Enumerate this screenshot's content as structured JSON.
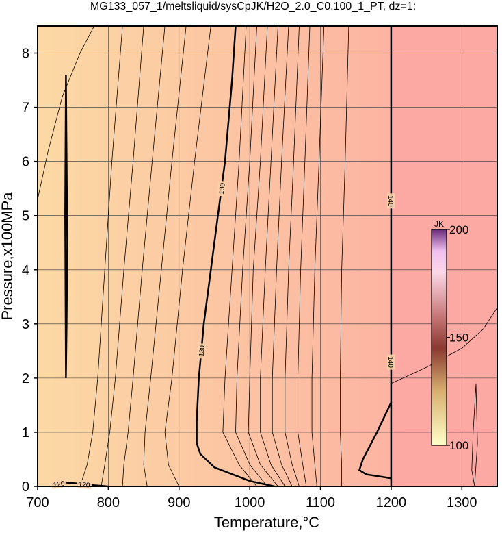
{
  "chart_data": {
    "type": "contour",
    "title": "MG133_057_1/meltsliquid/sysCpJK/H2O_2.0_C0.100_1_PT, dz=1:",
    "x_label": "Temperature,°C",
    "y_label": "Pressure,x100MPa",
    "xlim": [
      700,
      1350
    ],
    "ylim": [
      0,
      8.5
    ],
    "xticks": [
      700,
      800,
      900,
      1000,
      1100,
      1200,
      1300
    ],
    "yticks": [
      0,
      1,
      2,
      3,
      4,
      5,
      6,
      7,
      8
    ],
    "grid": true,
    "colorbar": {
      "label": "JK",
      "lim": [
        100,
        200
      ],
      "ticks": [
        100,
        150,
        200
      ]
    },
    "contours": [
      {
        "level": 130,
        "style": "thick",
        "x": [
          980,
          975,
          965,
          955,
          945,
          935,
          928,
          925,
          925,
          930,
          950,
          980,
          1000,
          1035
        ],
        "y": [
          8.5,
          7.5,
          6,
          5,
          4,
          3,
          2,
          1.2,
          0.8,
          0.6,
          0.35,
          0.2,
          0.1,
          0
        ]
      },
      {
        "level": 140,
        "style": "thick",
        "x": [
          1200,
          1200,
          null,
          1200,
          1180,
          1160,
          1155,
          1165,
          1200
        ],
        "y": [
          8.5,
          0,
          null,
          1.55,
          1.0,
          0.5,
          0.3,
          0.22,
          0.15
        ]
      },
      {
        "level": 120,
        "style": "thick",
        "x": [
          720,
          740,
          760,
          780,
          800,
          null,
          740,
          741,
          742,
          741,
          740,
          739,
          740
        ],
        "y": [
          0.03,
          0.07,
          0.05,
          0.02,
          0,
          null,
          2,
          3,
          4.5,
          6,
          7.6,
          5,
          2
        ]
      },
      {
        "level": 124,
        "style": "thin",
        "x": [
          700,
          715,
          735,
          760,
          780
        ],
        "y": [
          5.3,
          6.2,
          7.2,
          8.0,
          8.5
        ]
      },
      {
        "level": 125,
        "style": "thin",
        "x": [
          820,
          805,
          795,
          785,
          778,
          770,
          760
        ],
        "y": [
          8.5,
          6,
          4,
          2,
          1,
          0.4,
          0
        ]
      },
      {
        "level": 126,
        "style": "thin",
        "x": [
          850,
          835,
          822,
          810,
          802,
          795,
          790
        ],
        "y": [
          8.5,
          6,
          4,
          2,
          1,
          0.4,
          0
        ]
      },
      {
        "level": 127,
        "style": "thin",
        "x": [
          880,
          862,
          848,
          835,
          828,
          822,
          820
        ],
        "y": [
          8.5,
          6,
          4,
          2,
          1,
          0.4,
          0
        ]
      },
      {
        "level": 128,
        "style": "thin",
        "x": [
          910,
          890,
          875,
          860,
          852,
          850,
          855
        ],
        "y": [
          8.5,
          6,
          4,
          2,
          1,
          0.4,
          0
        ]
      },
      {
        "level": 129,
        "style": "thin",
        "x": [
          945,
          922,
          905,
          890,
          880,
          885,
          900
        ],
        "y": [
          8.5,
          6,
          4,
          2,
          1,
          0.4,
          0
        ]
      },
      {
        "level": 131,
        "style": "thin",
        "x": [
          995,
          985,
          975,
          965,
          962,
          985,
          1010
        ],
        "y": [
          8.5,
          6,
          4,
          2,
          1,
          0.4,
          0
        ]
      },
      {
        "level": 132,
        "style": "thin",
        "x": [
          1010,
          1000,
          990,
          982,
          980,
          1000,
          1025
        ],
        "y": [
          8.5,
          6,
          4,
          2,
          1,
          0.4,
          0
        ]
      },
      {
        "level": 133,
        "style": "thin",
        "x": [
          1025,
          1015,
          1005,
          1000,
          998,
          1015,
          1040
        ],
        "y": [
          8.5,
          6,
          4,
          2,
          1,
          0.4,
          0
        ]
      },
      {
        "level": 134,
        "style": "thin",
        "x": [
          1040,
          1030,
          1022,
          1015,
          1015,
          1030,
          1050
        ],
        "y": [
          8.5,
          6,
          4,
          2,
          1,
          0.4,
          0
        ]
      },
      {
        "level": 135,
        "style": "thin",
        "x": [
          1055,
          1045,
          1038,
          1032,
          1032,
          1045,
          1060
        ],
        "y": [
          8.5,
          6,
          4,
          2,
          1,
          0.4,
          0
        ]
      },
      {
        "level": 136,
        "style": "thin",
        "x": [
          1070,
          1062,
          1055,
          1050,
          1050,
          1060,
          1070
        ],
        "y": [
          8.5,
          6,
          4,
          2,
          1,
          0.4,
          0
        ]
      },
      {
        "level": 137,
        "style": "thin",
        "x": [
          1085,
          1078,
          1072,
          1068,
          1068,
          1075,
          1080
        ],
        "y": [
          8.5,
          6,
          4,
          2,
          1,
          0.4,
          0
        ]
      },
      {
        "level": 138,
        "style": "thin",
        "x": [
          1105,
          1098,
          1092,
          1088,
          1088,
          1092,
          1095
        ],
        "y": [
          8.5,
          6,
          4,
          2,
          1,
          0.4,
          0
        ]
      },
      {
        "level": 139,
        "style": "thin",
        "x": [
          1140,
          1135,
          1130,
          1128,
          1128,
          1130,
          1130
        ],
        "y": [
          8.5,
          6,
          4,
          2,
          1,
          0.4,
          0
        ]
      },
      {
        "level": 141,
        "style": "thin",
        "x": [
          1200,
          1250,
          1300,
          1330,
          1350
        ],
        "y": [
          1.9,
          2.2,
          2.55,
          2.9,
          3.3
        ]
      },
      {
        "level": 142,
        "style": "thin",
        "x": [
          1318,
          1322,
          1320,
          1316,
          1314,
          1318
        ],
        "y": [
          0,
          0.8,
          1.9,
          1.0,
          0.3,
          0
        ]
      }
    ]
  }
}
